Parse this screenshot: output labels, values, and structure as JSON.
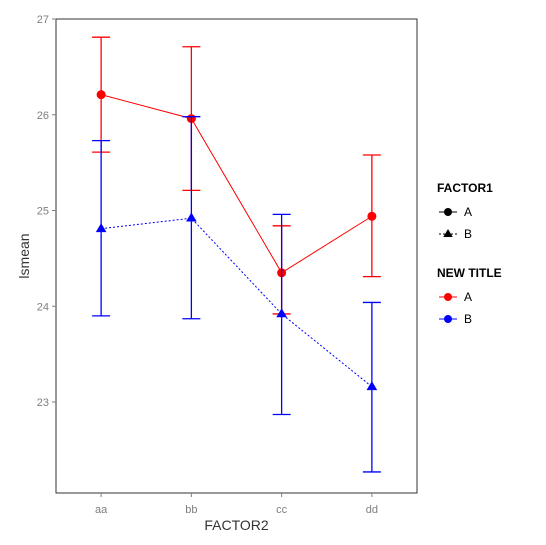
{
  "chart_data": {
    "type": "line",
    "xlabel": "FACTOR2",
    "ylabel": "lsmean",
    "categories": [
      "aa",
      "bb",
      "cc",
      "dd"
    ],
    "ylim": [
      22.05,
      27.0
    ],
    "yticks": [
      23,
      24,
      25,
      26,
      27
    ],
    "grid": false,
    "legend_position": "right",
    "series": [
      {
        "name": "A",
        "color": "#ff0000",
        "marker": "circle",
        "linestyle": "solid",
        "values": [
          26.21,
          25.96,
          24.35,
          24.94
        ],
        "lower": [
          25.61,
          25.21,
          23.92,
          24.31
        ],
        "upper": [
          26.81,
          26.71,
          24.84,
          25.58
        ]
      },
      {
        "name": "B",
        "color": "#0000ff",
        "marker": "triangle",
        "linestyle": "dotted",
        "values": [
          24.81,
          24.92,
          23.92,
          23.16
        ],
        "lower": [
          23.9,
          23.87,
          22.87,
          22.27
        ],
        "upper": [
          25.73,
          25.98,
          24.96,
          24.04
        ]
      }
    ],
    "legends": [
      {
        "title": "FACTOR1",
        "entries": [
          {
            "label": "A",
            "marker": "circle",
            "color": "#000000",
            "linestyle": "solid"
          },
          {
            "label": "B",
            "marker": "triangle",
            "color": "#000000",
            "linestyle": "dotted"
          }
        ]
      },
      {
        "title": "NEW TITLE",
        "entries": [
          {
            "label": "A",
            "marker": "circle",
            "color": "#ff0000",
            "linestyle": "solid"
          },
          {
            "label": "B",
            "marker": "circle",
            "color": "#0000ff",
            "linestyle": "solid"
          }
        ]
      }
    ]
  }
}
